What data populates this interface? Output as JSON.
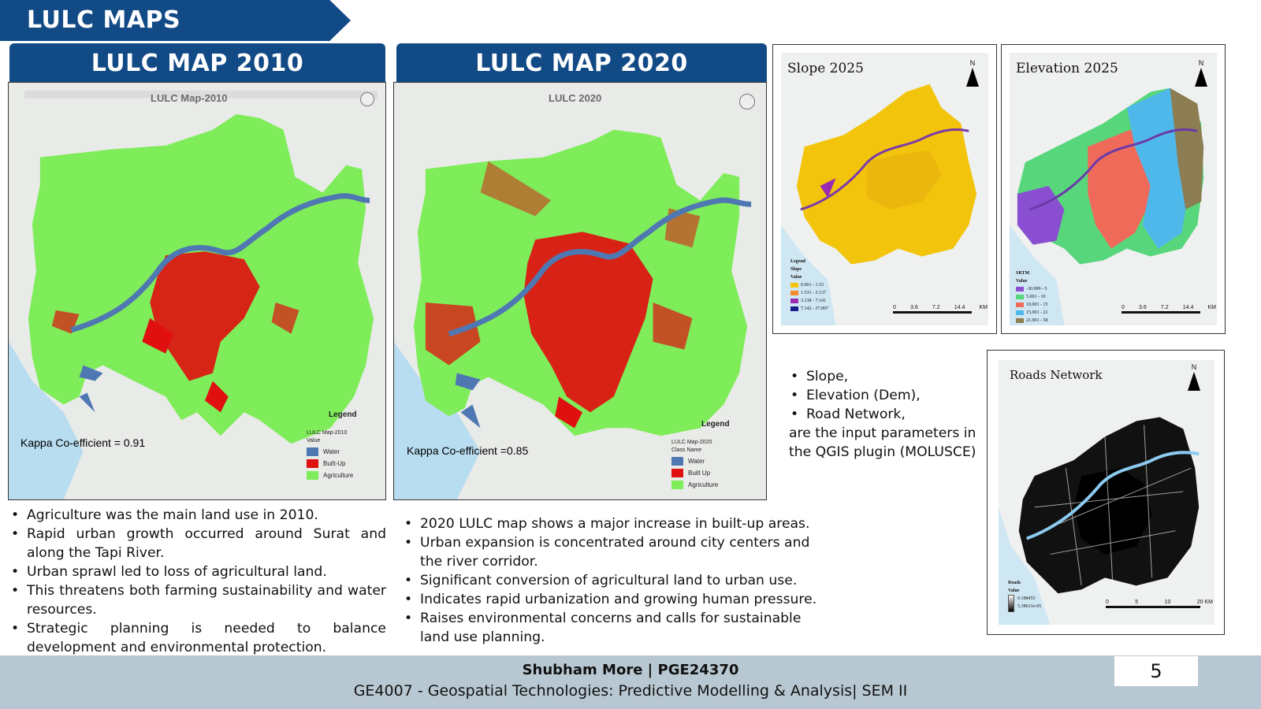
{
  "header": {
    "section_title": "LULC MAPS"
  },
  "colors": {
    "banner": "#124a86",
    "water": "#4f78b3",
    "builtup": "#e01010",
    "agriculture": "#7fec5a",
    "footer": "#b8c8d2"
  },
  "map2010": {
    "header": "LULC MAP 2010",
    "title": "LULC Map-2010",
    "kappa": "Kappa Co-efficient = 0.91",
    "legend_title": "Legend",
    "legend_subtitle": "LULC Map-2010",
    "legend_value_label": "Value",
    "legend_items": [
      {
        "label": "Water",
        "color": "#4f78b3"
      },
      {
        "label": "Built-Up",
        "color": "#e01010"
      },
      {
        "label": "Agriculture",
        "color": "#7fec5a"
      }
    ]
  },
  "map2020": {
    "header": "LULC MAP 2020",
    "title": "LULC 2020",
    "kappa": "Kappa Co-efficient =0.85",
    "legend_title": "Legend",
    "legend_subtitle": "LULC Map-2020",
    "legend_value_label": "Class Name",
    "legend_items": [
      {
        "label": "Water",
        "color": "#4f78b3"
      },
      {
        "label": "Built Up",
        "color": "#e01010"
      },
      {
        "label": "Agriculture",
        "color": "#7fec5a"
      }
    ]
  },
  "slope": {
    "title": "Slope 2025",
    "north": "N",
    "legend_heading": "Legend",
    "legend_subheading": "Slope",
    "legend_value_label": "Value",
    "legend_items": [
      {
        "label": "0.001 - 1.53",
        "color": "#f2c40c"
      },
      {
        "label": "1.531 - 3.137",
        "color": "#f08a2a"
      },
      {
        "label": "3.138 - 7.141",
        "color": "#9a2ab0"
      },
      {
        "label": "7.142 - 37.897",
        "color": "#1a1a8a"
      }
    ],
    "scale_labels": [
      "0",
      "3.6",
      "7.2",
      "14.4",
      "KM"
    ]
  },
  "elevation": {
    "title": "Elevation 2025",
    "north": "N",
    "legend_heading": "SRTM",
    "legend_value_label": "Value",
    "legend_items": [
      {
        "label": "-30.999 - 5",
        "color": "#8a4fd0"
      },
      {
        "label": "5.001 - 10",
        "color": "#58d67c"
      },
      {
        "label": "10.001 - 15",
        "color": "#f06a5a"
      },
      {
        "label": "15.001 - 21",
        "color": "#4fb8ea"
      },
      {
        "label": "21.001 - 58",
        "color": "#8c7d52"
      }
    ],
    "scale_labels": [
      "0",
      "3.6",
      "7.2",
      "14.4",
      "KM"
    ]
  },
  "roads": {
    "title": "Roads Network",
    "north": "N",
    "legend_heading": "Roads",
    "legend_value_label": "Value",
    "legend_high": "0.188455",
    "legend_low": "5.38631e-05",
    "scale_labels": [
      "0",
      "5",
      "10",
      "20 KM"
    ]
  },
  "bullets_2010": [
    "Agriculture was the main land use in 2010.",
    "Rapid urban growth occurred around Surat and along the Tapi River.",
    "Urban sprawl led to loss of agricultural land.",
    "This threatens both farming sustainability and water resources.",
    "Strategic planning is needed to balance development and environmental protection."
  ],
  "bullets_2020": [
    "2020 LULC map shows a major increase in built-up areas.",
    "Urban expansion is concentrated around city centers and the river corridor.",
    "Significant conversion of agricultural land to urban use.",
    "Indicates rapid urbanization and growing human pressure.",
    "Raises environmental concerns and calls for sustainable land use planning."
  ],
  "inputs": {
    "items": [
      "Slope,",
      "Elevation (Dem),",
      "Road Network,"
    ],
    "note": "are the input parameters in the QGIS plugin (MOLUSCE)"
  },
  "footer": {
    "author": "Shubham More  |  PGE24370",
    "course": "GE4007 - Geospatial Technologies: Predictive Modelling & Analysis| SEM II",
    "page_number": "5"
  }
}
